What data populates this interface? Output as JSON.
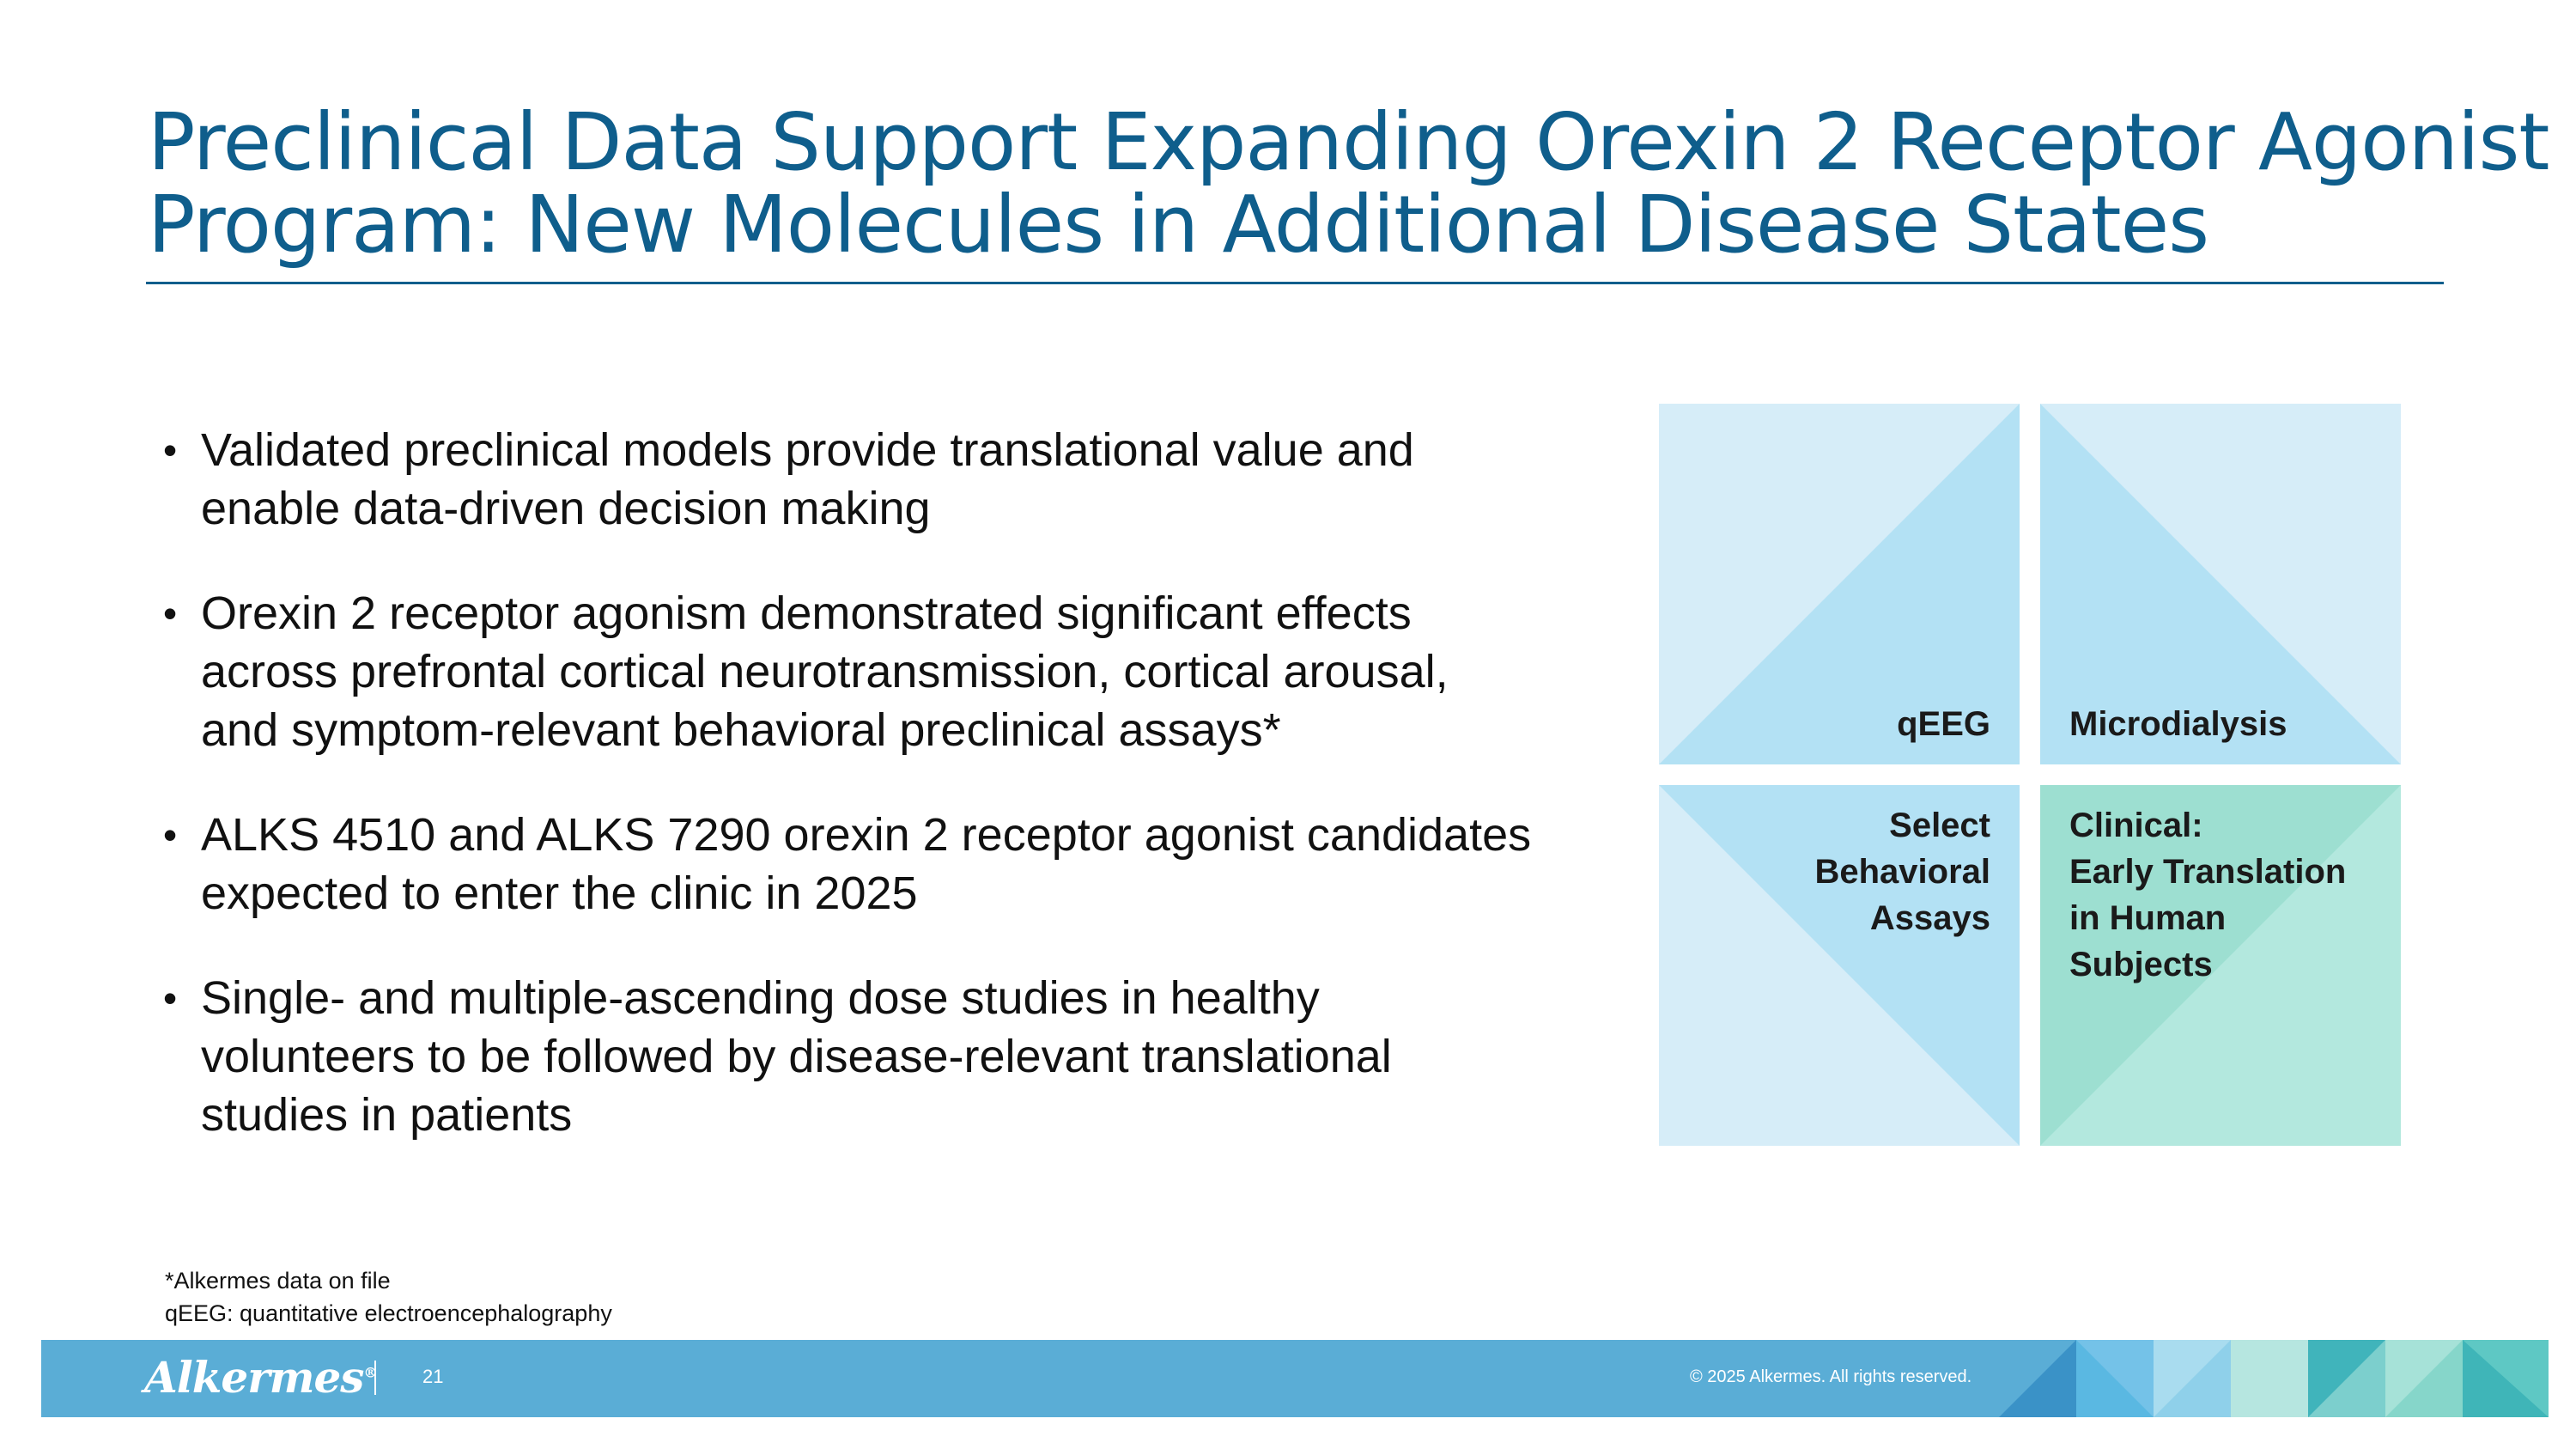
{
  "slide": {
    "title_lines": [
      "Preclinical Data Support Expanding Orexin 2 Receptor Agonist",
      "Program: New Molecules in Additional Disease States"
    ]
  },
  "bullets": [
    {
      "lines": [
        "Validated preclinical models provide translational value and",
        "enable data-driven decision making"
      ]
    },
    {
      "lines": [
        "Orexin 2 receptor agonism demonstrated significant effects",
        "across prefrontal cortical neurotransmission, cortical arousal,",
        "and symptom-relevant behavioral preclinical assays*"
      ]
    },
    {
      "lines": [
        "ALKS 4510 and ALKS 7290 orexin 2 receptor agonist candidates",
        "expected to enter the clinic in 2025"
      ]
    },
    {
      "lines": [
        "Single- and multiple-ascending dose studies in healthy",
        "volunteers to be followed by disease-relevant translational",
        "studies in patients"
      ]
    }
  ],
  "bullet_symbol": "•",
  "grid": {
    "tiles": [
      {
        "lines": [
          "qEEG"
        ]
      },
      {
        "lines": [
          "Microdialysis"
        ]
      },
      {
        "lines": [
          "Select",
          "Behavioral",
          "Assays"
        ]
      },
      {
        "lines": [
          "Clinical:",
          "Early Translation",
          "in Human",
          "Subjects"
        ]
      }
    ],
    "colors": {
      "light_blue": "#d6edf8",
      "mid_blue": "#b3e1f4",
      "light_teal": "#b3e8de",
      "mid_teal": "#9ddfd1"
    }
  },
  "footnotes": [
    "*Alkermes data on file",
    "qEEG: quantitative electroencephalography"
  ],
  "footer": {
    "logo_text": "Alkermes",
    "logo_mark": "®",
    "page_number": "21",
    "copyright": "© 2025 Alkermes. All rights reserved.",
    "bar_color": "#5aadd6"
  }
}
